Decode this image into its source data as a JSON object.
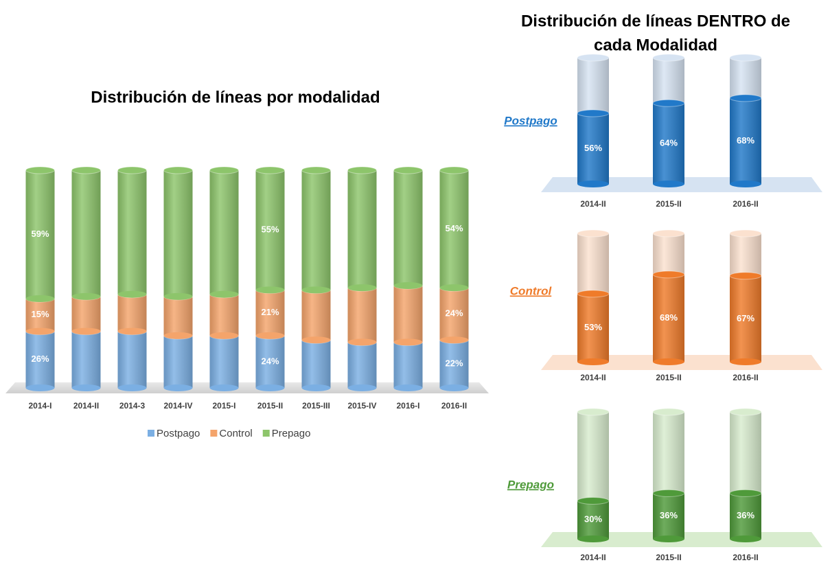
{
  "group_title": [
    "Distribución de líneas DENTRO de",
    "cada Modalidad"
  ],
  "chart_data": [
    {
      "type": "stacked_bar",
      "title": "Distribución de líneas por modalidad",
      "categories": [
        "2014-I",
        "2014-II",
        "2014-3",
        "2014-IV",
        "2015-I",
        "2015-II",
        "2015-III",
        "2015-IV",
        "2016-I",
        "2016-II"
      ],
      "ylim": [
        0,
        100
      ],
      "legend": "bottom",
      "series": [
        {
          "name": "Postpago",
          "color": "#7bafe3",
          "values": [
            26,
            26,
            26,
            24,
            24,
            24,
            22,
            21,
            21,
            22
          ],
          "value_labels": [
            "26%",
            null,
            null,
            null,
            null,
            "24%",
            null,
            null,
            null,
            "22%"
          ]
        },
        {
          "name": "Control",
          "color": "#f4a46b",
          "values": [
            15,
            16,
            17,
            18,
            19,
            21,
            23,
            25,
            26,
            24
          ],
          "value_labels": [
            "15%",
            null,
            null,
            null,
            null,
            "21%",
            null,
            null,
            null,
            "24%"
          ]
        },
        {
          "name": "Prepago",
          "color": "#8dc56b",
          "values": [
            59,
            58,
            57,
            58,
            57,
            55,
            55,
            54,
            53,
            54
          ],
          "value_labels": [
            "59%",
            null,
            null,
            null,
            null,
            "55%",
            null,
            null,
            null,
            "54%"
          ]
        }
      ]
    },
    {
      "type": "bar",
      "title": "Postpago",
      "categories": [
        "2014-II",
        "2015-II",
        "2016-II"
      ],
      "ylim": [
        0,
        100
      ],
      "values": [
        56,
        64,
        68
      ],
      "value_labels": [
        "56%",
        "64%",
        "68%"
      ],
      "color": "#2179c9",
      "background_color": "#d6e3f2"
    },
    {
      "type": "bar",
      "title": "Control",
      "categories": [
        "2014-II",
        "2015-II",
        "2016-II"
      ],
      "ylim": [
        0,
        100
      ],
      "values": [
        53,
        68,
        67
      ],
      "value_labels": [
        "53%",
        "68%",
        "67%"
      ],
      "color": "#ef7b2a",
      "background_color": "#fbe1cf"
    },
    {
      "type": "bar",
      "title": "Prepago",
      "categories": [
        "2014-II",
        "2015-II",
        "2016-II"
      ],
      "ylim": [
        0,
        100
      ],
      "values": [
        30,
        36,
        36
      ],
      "value_labels": [
        "30%",
        "36%",
        "36%"
      ],
      "color": "#4f9a3a",
      "background_color": "#d8ecce"
    }
  ]
}
